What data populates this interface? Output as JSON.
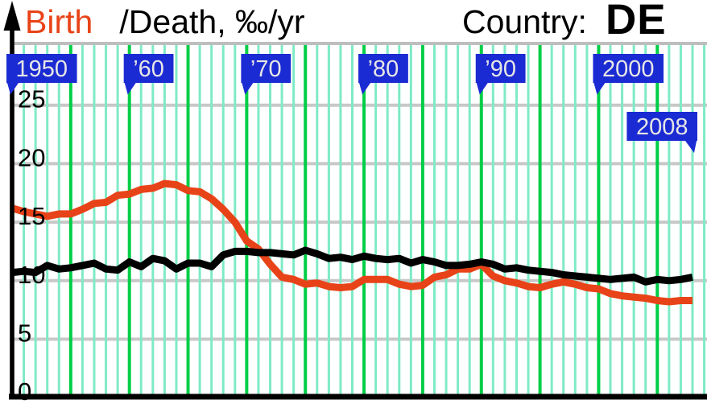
{
  "title": {
    "birth_word": "Birth",
    "rest": " /Death, ‰/yr",
    "country_label": "Country:",
    "country_code": "DE"
  },
  "colors": {
    "birth_red": "#E84318",
    "death_black": "#000000",
    "tag_blue": "#1B2BD3",
    "tag_text": "#E6E6E6",
    "grid_minor_green": "#7FEAC6",
    "grid_major_green": "#00CE47",
    "grid_gray": "#C8C8C8",
    "border_gray": "#BEBEBE",
    "axis_black": "#000000",
    "background": "#FFFFFF"
  },
  "chart_data": {
    "type": "line",
    "title": "Birth /Death, ‰/yr",
    "country": "DE",
    "ylabel": "‰/yr",
    "ylim": [
      0,
      27
    ],
    "xlim": [
      1950,
      2009
    ],
    "grid": "on",
    "y_ticks": [
      0,
      5,
      10,
      15,
      20,
      25
    ],
    "x_tick_tags": [
      {
        "label": "1950",
        "year": 1950,
        "row": 1,
        "tail": "left"
      },
      {
        "label": "’60",
        "year": 1960,
        "row": 1,
        "tail": "left"
      },
      {
        "label": "’70",
        "year": 1970,
        "row": 1,
        "tail": "left"
      },
      {
        "label": "’80",
        "year": 1980,
        "row": 1,
        "tail": "left"
      },
      {
        "label": "’90",
        "year": 1990,
        "row": 1,
        "tail": "left"
      },
      {
        "label": "2000",
        "year": 2000,
        "row": 1,
        "tail": "left"
      },
      {
        "label": "2008",
        "year": 2008,
        "row": 2,
        "tail": "right"
      }
    ],
    "x": [
      1950,
      1951,
      1952,
      1953,
      1954,
      1955,
      1956,
      1957,
      1958,
      1959,
      1960,
      1961,
      1962,
      1963,
      1964,
      1965,
      1966,
      1967,
      1968,
      1969,
      1970,
      1971,
      1972,
      1973,
      1974,
      1975,
      1976,
      1977,
      1978,
      1979,
      1980,
      1981,
      1982,
      1983,
      1984,
      1985,
      1986,
      1987,
      1988,
      1989,
      1990,
      1991,
      1992,
      1993,
      1994,
      1995,
      1996,
      1997,
      1998,
      1999,
      2000,
      2001,
      2002,
      2003,
      2004,
      2005,
      2006,
      2007,
      2008
    ],
    "series": [
      {
        "name": "Birth rate",
        "color": "#E84318",
        "values": [
          16.2,
          15.9,
          15.7,
          15.5,
          15.7,
          15.7,
          16.1,
          16.6,
          16.7,
          17.3,
          17.4,
          17.8,
          17.9,
          18.3,
          18.2,
          17.7,
          17.6,
          17.0,
          16.1,
          15.0,
          13.4,
          12.7,
          11.4,
          10.3,
          10.1,
          9.7,
          9.8,
          9.5,
          9.4,
          9.5,
          10.1,
          10.1,
          10.1,
          9.7,
          9.5,
          9.6,
          10.3,
          10.5,
          11.0,
          11.0,
          11.4,
          10.4,
          10.0,
          9.8,
          9.5,
          9.4,
          9.7,
          9.9,
          9.7,
          9.4,
          9.3,
          8.9,
          8.7,
          8.6,
          8.5,
          8.3,
          8.2,
          8.3,
          8.3
        ]
      },
      {
        "name": "Death rate",
        "color": "#000000",
        "values": [
          10.7,
          10.8,
          10.7,
          11.3,
          11.0,
          11.1,
          11.3,
          11.5,
          11.0,
          10.9,
          11.6,
          11.2,
          11.9,
          11.7,
          11.0,
          11.5,
          11.5,
          11.2,
          12.2,
          12.5,
          12.5,
          12.4,
          12.4,
          12.3,
          12.2,
          12.6,
          12.3,
          11.9,
          12.0,
          11.8,
          12.1,
          11.9,
          11.8,
          11.9,
          11.5,
          11.8,
          11.6,
          11.3,
          11.3,
          11.4,
          11.6,
          11.4,
          11.0,
          11.1,
          10.9,
          10.8,
          10.7,
          10.5,
          10.4,
          10.3,
          10.2,
          10.1,
          10.2,
          10.3,
          9.9,
          10.1,
          10.0,
          10.1,
          10.3
        ]
      }
    ]
  }
}
